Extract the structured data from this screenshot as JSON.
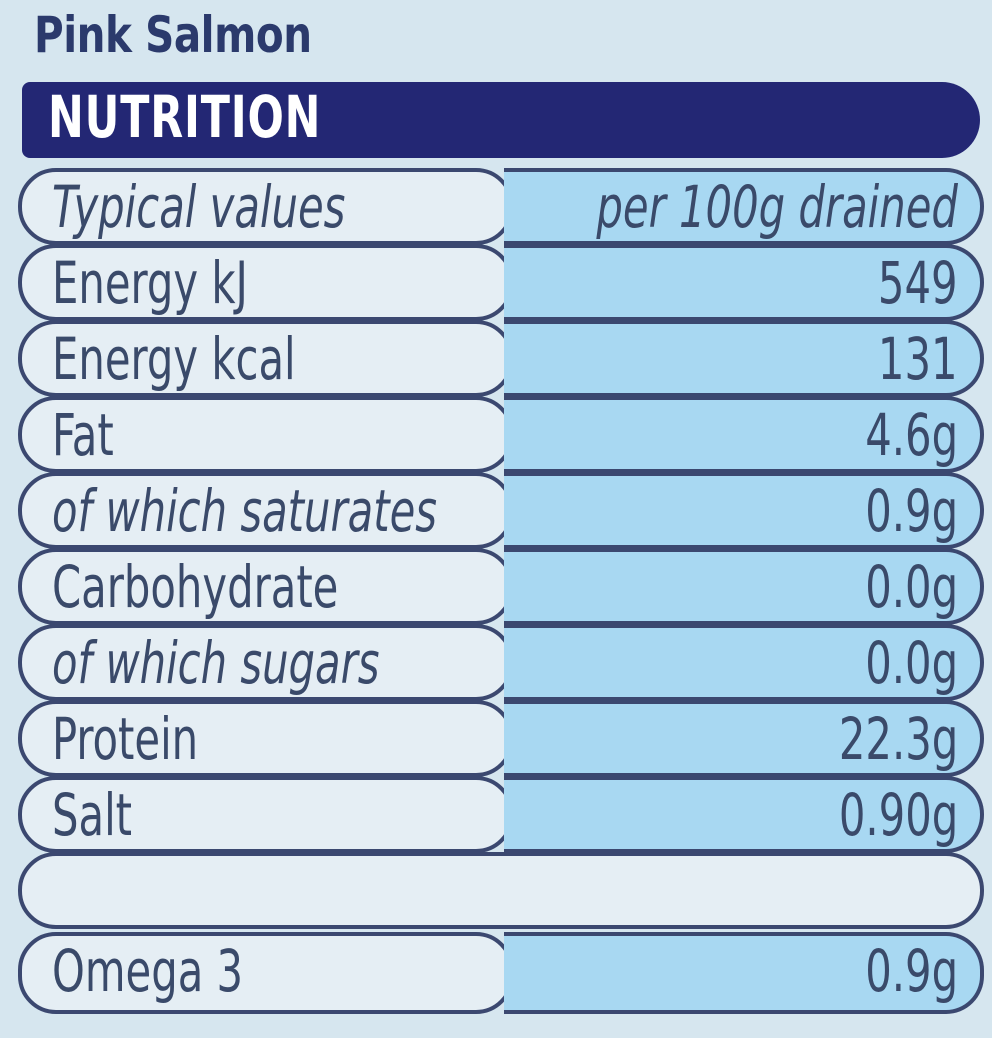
{
  "product_name": "Pink Salmon",
  "heading": "NUTRITION",
  "header_row": {
    "label": "Typical values",
    "value": "per 100g drained"
  },
  "rows": [
    {
      "label": "Energy kJ",
      "value": "549"
    },
    {
      "label": "Energy kcal",
      "value": "131"
    },
    {
      "label": "Fat",
      "value": "4.6g"
    },
    {
      "label": "of which saturates",
      "value": "0.9g"
    },
    {
      "label": "Carbohydrate",
      "value": "0.0g"
    },
    {
      "label": "of which sugars",
      "value": "0.0g"
    },
    {
      "label": "Protein",
      "value": "22.3g"
    },
    {
      "label": "Salt",
      "value": "0.90g"
    }
  ],
  "extra_row": {
    "label": "Omega 3",
    "value": "0.9g"
  },
  "colors": {
    "background": "#d6e6ef",
    "banner": "#232774",
    "label_cell": "#e5eef4",
    "value_cell": "#a8d8f2",
    "border": "#3b4870"
  }
}
